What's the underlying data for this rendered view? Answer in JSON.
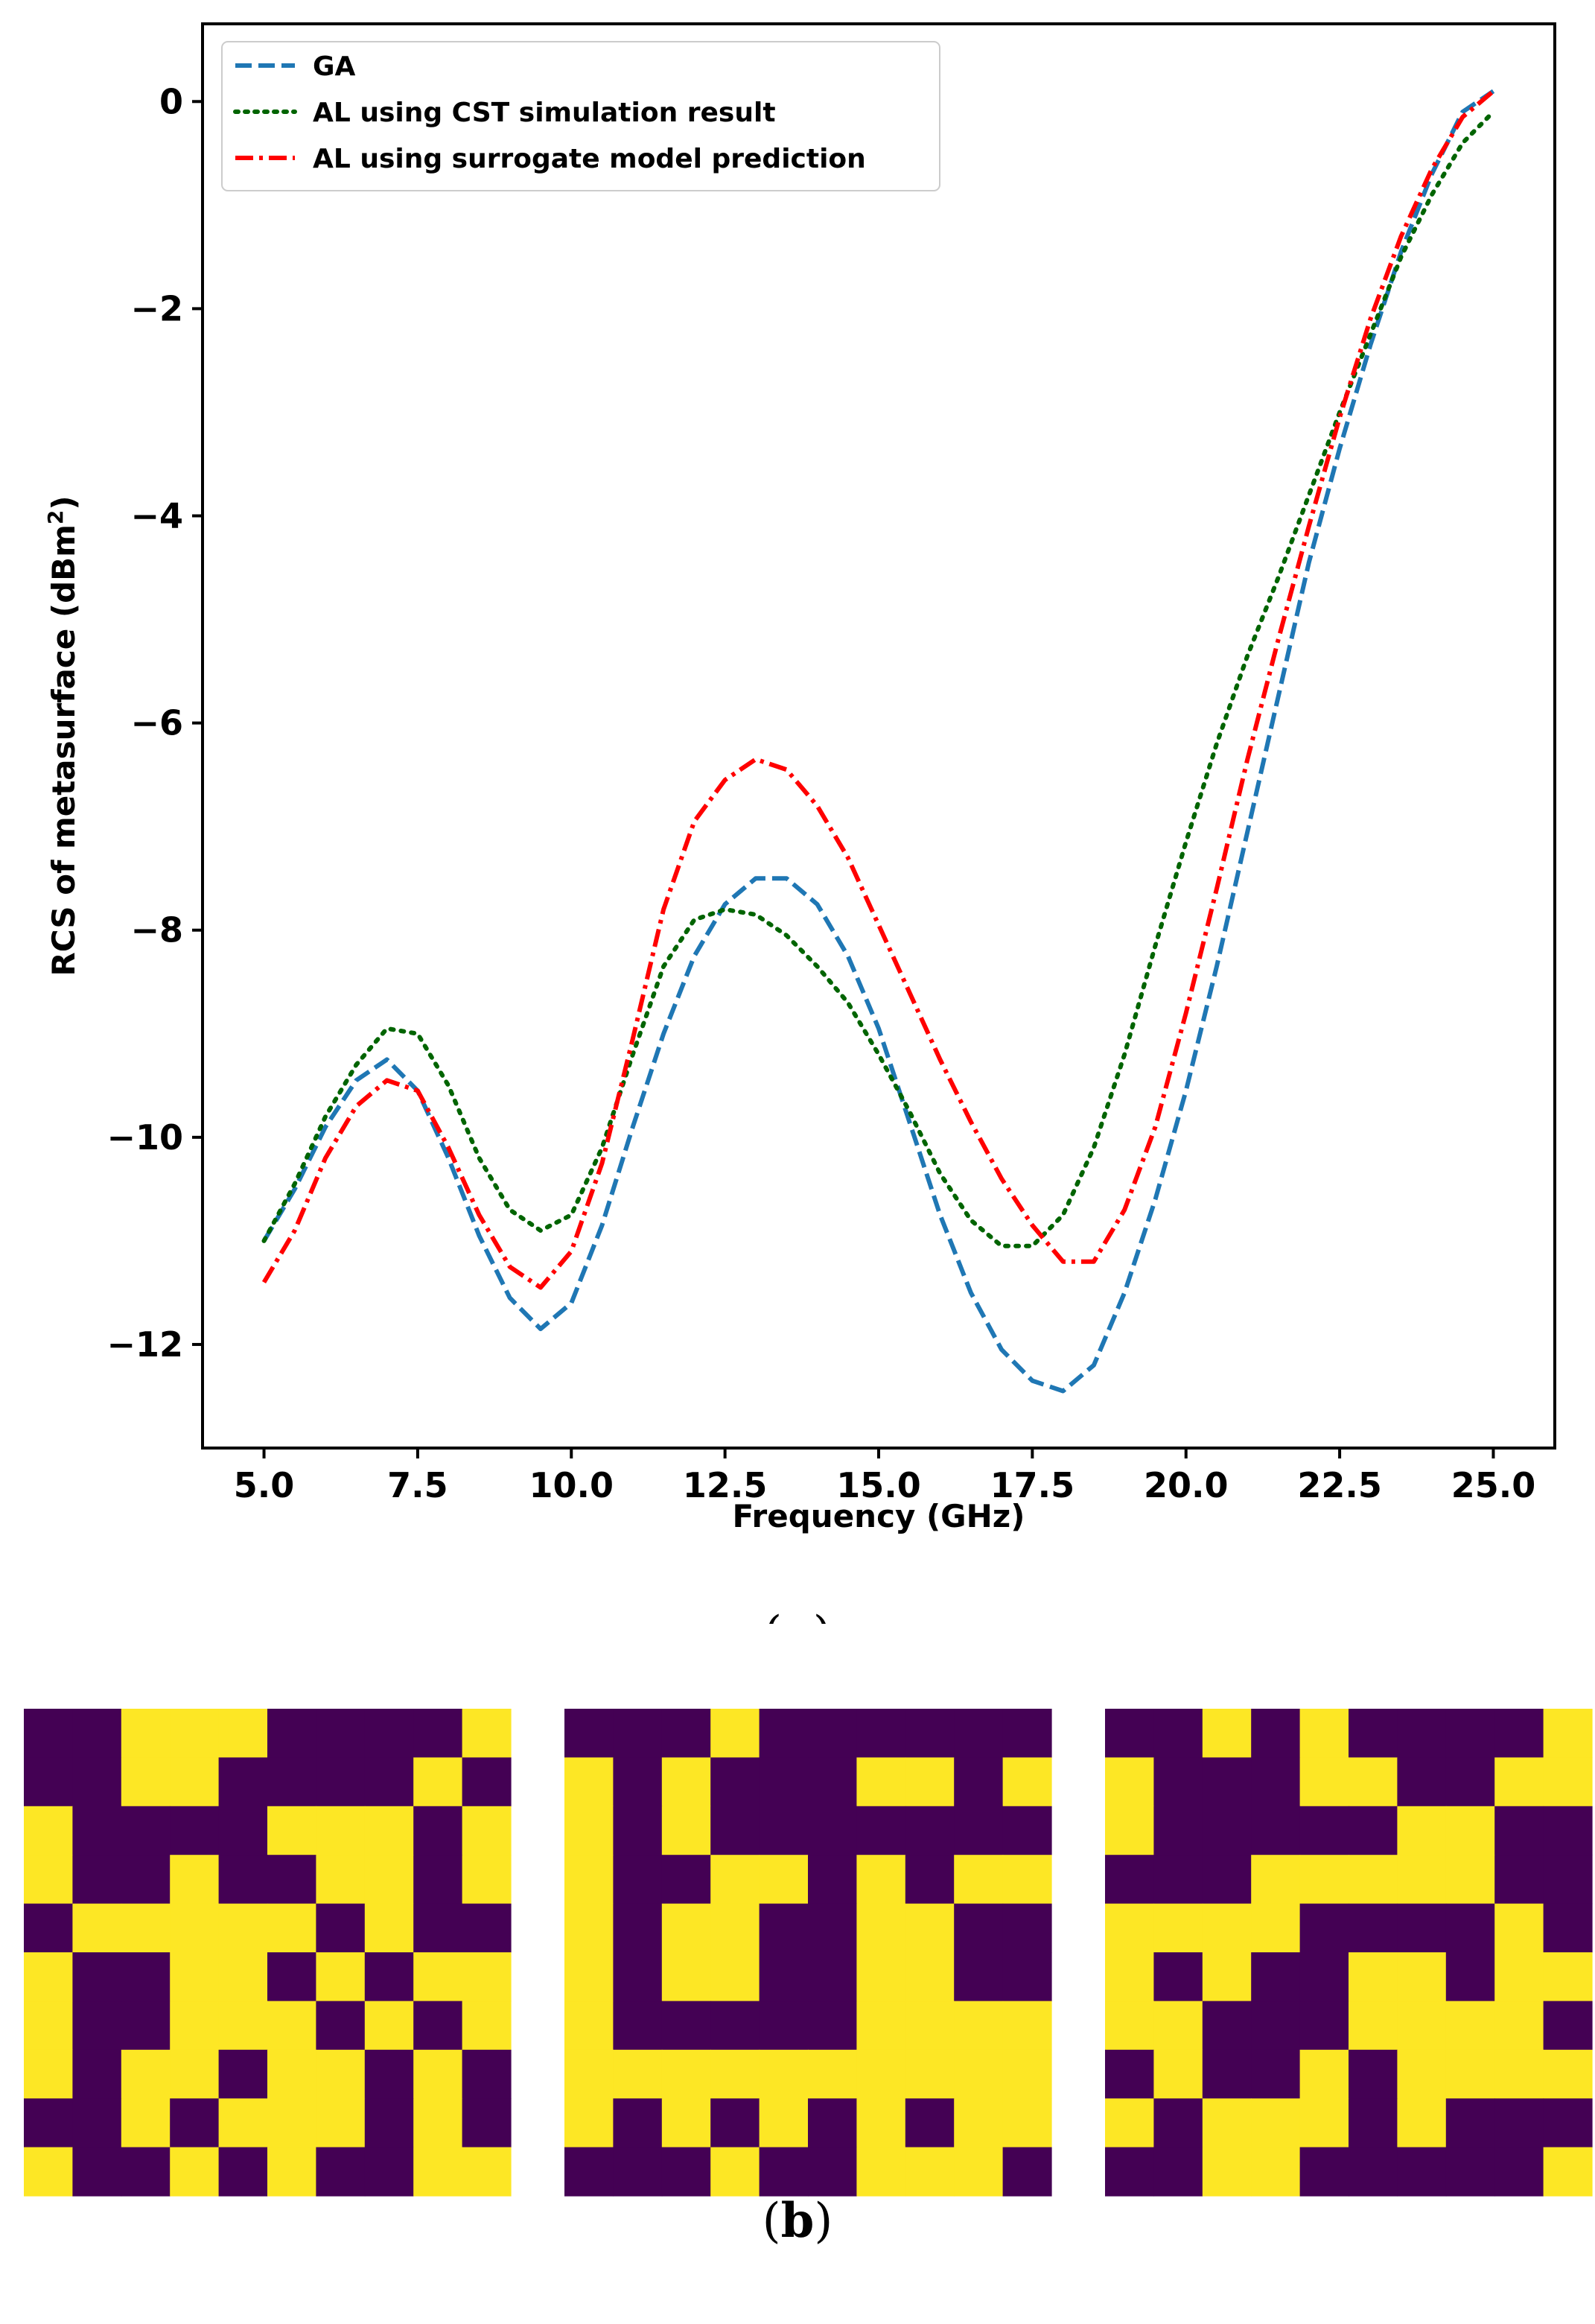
{
  "chart_data": {
    "type": "line",
    "xlabel": "Frequency (GHz)",
    "ylabel_prefix": "RCS of metasurface (dBm",
    "ylabel_sup": "2",
    "ylabel_suffix": ")",
    "xlim": [
      4.0,
      26.0
    ],
    "ylim": [
      -13.0,
      0.75
    ],
    "xticks": [
      5.0,
      7.5,
      10.0,
      12.5,
      15.0,
      17.5,
      20.0,
      22.5,
      25.0
    ],
    "xtick_labels": [
      "5.0",
      "7.5",
      "10.0",
      "12.5",
      "15.0",
      "17.5",
      "20.0",
      "22.5",
      "25.0"
    ],
    "yticks": [
      0,
      -2,
      -4,
      -6,
      -8,
      -10,
      -12
    ],
    "ytick_labels": [
      "0",
      "−2",
      "−4",
      "−6",
      "−8",
      "−10",
      "−12"
    ],
    "legend_position": "top-left",
    "series": [
      {
        "name": "GA",
        "color": "#1f77b4",
        "style": "dashed",
        "x": [
          5.0,
          5.5,
          6.0,
          6.5,
          7.0,
          7.5,
          8.0,
          8.5,
          9.0,
          9.5,
          10.0,
          10.5,
          11.0,
          11.5,
          12.0,
          12.5,
          13.0,
          13.5,
          14.0,
          14.5,
          15.0,
          15.5,
          16.0,
          16.5,
          17.0,
          17.5,
          18.0,
          18.5,
          19.0,
          19.5,
          20.0,
          20.5,
          21.0,
          21.5,
          22.0,
          22.5,
          23.0,
          23.5,
          24.0,
          24.5,
          25.0
        ],
        "y": [
          -11.0,
          -10.5,
          -9.9,
          -9.45,
          -9.25,
          -9.55,
          -10.2,
          -10.95,
          -11.55,
          -11.85,
          -11.6,
          -10.85,
          -9.9,
          -9.0,
          -8.25,
          -7.75,
          -7.5,
          -7.5,
          -7.75,
          -8.25,
          -8.95,
          -9.85,
          -10.75,
          -11.5,
          -12.05,
          -12.35,
          -12.45,
          -12.2,
          -11.5,
          -10.6,
          -9.55,
          -8.35,
          -7.05,
          -5.75,
          -4.45,
          -3.35,
          -2.35,
          -1.45,
          -0.7,
          -0.1,
          0.1
        ]
      },
      {
        "name": "AL using CST simulation result",
        "color": "#006400",
        "style": "dotted",
        "x": [
          5.0,
          5.5,
          6.0,
          6.5,
          7.0,
          7.5,
          8.0,
          8.5,
          9.0,
          9.5,
          10.0,
          10.5,
          11.0,
          11.5,
          12.0,
          12.5,
          13.0,
          13.5,
          14.0,
          14.5,
          15.0,
          15.5,
          16.0,
          16.5,
          17.0,
          17.5,
          18.0,
          18.5,
          19.0,
          19.5,
          20.0,
          20.5,
          21.0,
          21.5,
          22.0,
          22.5,
          23.0,
          23.5,
          24.0,
          24.5,
          25.0
        ],
        "y": [
          -11.0,
          -10.45,
          -9.8,
          -9.3,
          -8.95,
          -9.0,
          -9.5,
          -10.2,
          -10.7,
          -10.9,
          -10.75,
          -10.1,
          -9.2,
          -8.35,
          -7.9,
          -7.8,
          -7.85,
          -8.05,
          -8.35,
          -8.7,
          -9.2,
          -9.75,
          -10.35,
          -10.8,
          -11.05,
          -11.05,
          -10.75,
          -10.1,
          -9.2,
          -8.15,
          -7.15,
          -6.2,
          -5.35,
          -4.6,
          -3.8,
          -3.0,
          -2.25,
          -1.5,
          -0.9,
          -0.4,
          -0.1
        ]
      },
      {
        "name": "AL using surrogate model prediction",
        "color": "#ff0000",
        "style": "dashdot",
        "x": [
          5.0,
          5.5,
          6.0,
          6.5,
          7.0,
          7.5,
          8.0,
          8.5,
          9.0,
          9.5,
          10.0,
          10.5,
          11.0,
          11.5,
          12.0,
          12.5,
          13.0,
          13.5,
          14.0,
          14.5,
          15.0,
          15.5,
          16.0,
          16.5,
          17.0,
          17.5,
          18.0,
          18.5,
          19.0,
          19.5,
          20.0,
          20.5,
          21.0,
          21.5,
          22.0,
          22.5,
          23.0,
          23.5,
          24.0,
          24.5,
          25.0
        ],
        "y": [
          -11.4,
          -10.9,
          -10.2,
          -9.7,
          -9.45,
          -9.55,
          -10.1,
          -10.75,
          -11.25,
          -11.45,
          -11.1,
          -10.25,
          -9.05,
          -7.8,
          -6.95,
          -6.55,
          -6.35,
          -6.45,
          -6.8,
          -7.3,
          -7.95,
          -8.6,
          -9.25,
          -9.85,
          -10.4,
          -10.85,
          -11.2,
          -11.2,
          -10.7,
          -9.9,
          -8.8,
          -7.6,
          -6.35,
          -5.2,
          -4.1,
          -3.05,
          -2.1,
          -1.3,
          -0.65,
          -0.15,
          0.1
        ]
      }
    ]
  },
  "captions": {
    "a": "a",
    "b": "b"
  },
  "pattern_colors": {
    "on": "#fde725",
    "off": "#440154"
  },
  "patterns": [
    [
      "0011100001",
      "0011000010",
      "1000011101",
      "1001001101",
      "0111110100",
      "1001101011",
      "1001110101",
      "1011011010",
      "0010111010",
      "1001010011"
    ],
    [
      "0001000000",
      "1010001101",
      "1010000000",
      "1001101011",
      "1011001100",
      "1011001100",
      "1000001111",
      "1111111111",
      "1010101011",
      "0001001110"
    ],
    [
      "0010100001",
      "1000110011",
      "1000001100",
      "0001111100",
      "1111000010",
      "1010011011",
      "1100011110",
      "0100101111",
      "1011101000",
      "0011000001"
    ]
  ]
}
